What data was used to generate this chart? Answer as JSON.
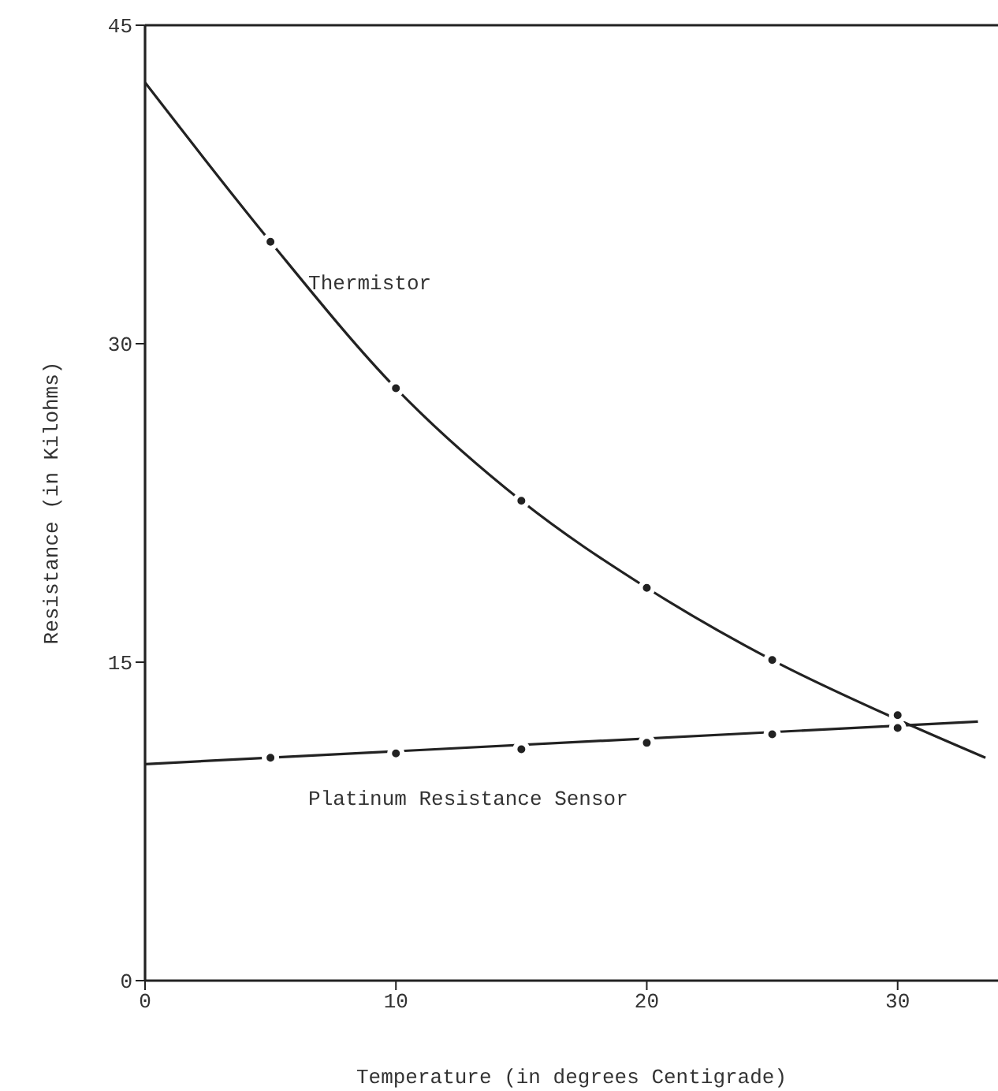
{
  "chart_data": {
    "type": "scatter",
    "xlabel": "Temperature (in degrees Centigrade)",
    "ylabel": "Resistance (in Kilohms)",
    "xlim": [
      0,
      34
    ],
    "xticks": [
      0,
      10,
      20,
      30
    ],
    "ylim": [
      0,
      45
    ],
    "yticks": [
      0,
      15,
      30,
      45
    ],
    "grid": false,
    "legend": false,
    "marker": "circle",
    "series": [
      {
        "type": "line",
        "marker": "none",
        "color": "#222222",
        "x": [
          0,
          5,
          10,
          15,
          20,
          25,
          30,
          33.5
        ],
        "values": [
          42.3,
          34.8,
          27.9,
          22.6,
          18.5,
          15.1,
          12.3,
          10.5
        ]
      },
      {
        "name": "Thermistor",
        "color": "#222222",
        "x": [
          5,
          10,
          15,
          20,
          25,
          30
        ],
        "values": [
          34.8,
          27.9,
          22.6,
          18.5,
          15.1,
          12.5
        ]
      },
      {
        "type": "line",
        "marker": "none",
        "color": "#222222",
        "x": [
          0,
          33.2
        ],
        "values": [
          10.2,
          12.2
        ]
      },
      {
        "name": "Platinum Resistance Sensor",
        "color": "#222222",
        "x": [
          5,
          10,
          15,
          20,
          25,
          30
        ],
        "values": [
          10.5,
          10.7,
          10.9,
          11.2,
          11.6,
          11.9
        ]
      }
    ]
  }
}
